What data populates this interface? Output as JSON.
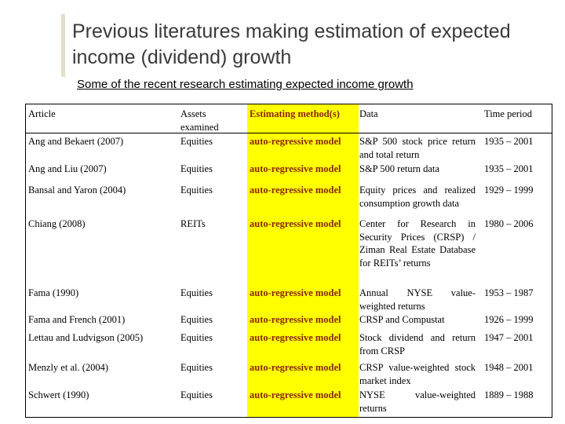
{
  "slide": {
    "title": "Previous literatures making estimation of expected income (dividend) growth",
    "subtitle": "Some of the recent research estimating expected income growth"
  },
  "table": {
    "headers": {
      "article": "Article",
      "assets": "Assets examined",
      "method": "Estimating method(s)",
      "data": "Data",
      "period": "Time period"
    },
    "rows": [
      {
        "article": "Ang and Bekaert (2007)",
        "assets": "Equities",
        "method": "auto-regressive model",
        "data": "S&P 500 stock price return and total return",
        "period": "1935 – 2001"
      },
      {
        "article": "Ang and Liu (2007)",
        "assets": "Equities",
        "method": "auto-regressive model",
        "data": "S&P 500 return data",
        "period": "1935 – 2001"
      },
      {
        "article": "Bansal and Yaron (2004)",
        "assets": "Equities",
        "method": "auto-regressive model",
        "data": "Equity prices and realized consumption growth data",
        "period": "1929 – 1999"
      },
      {
        "article": "Chiang (2008)",
        "assets": "REITs",
        "method": "auto-regressive model",
        "data": "Center for Research in Security Prices (CRSP) / Ziman Real Estate Database for REITs’ returns",
        "period": "1980 – 2006"
      },
      {
        "article": "Fama (1990)",
        "assets": "Equities",
        "method": "auto-regressive model",
        "data": "Annual NYSE value-weighted returns",
        "period": "1953 – 1987"
      },
      {
        "article": "Fama and French (2001)",
        "assets": "Equities",
        "method": "auto-regressive model",
        "data": "CRSP and Compustat",
        "period": "1926 – 1999"
      },
      {
        "article": "Lettau and Ludvigson (2005)",
        "assets": "Equities",
        "method": "auto-regressive model",
        "data": "Stock dividend and return from CRSP",
        "period": "1947 – 2001"
      },
      {
        "article": "Menzly et al. (2004)",
        "assets": "Equities",
        "method": "auto-regressive model",
        "data": "CRSP value-weighted stock market index",
        "period": "1948 – 2001"
      },
      {
        "article": "Schwert (1990)",
        "assets": "Equities",
        "method": "auto-regressive model",
        "data": "NYSE value-weighted returns",
        "period": "1889 – 1988"
      }
    ]
  }
}
